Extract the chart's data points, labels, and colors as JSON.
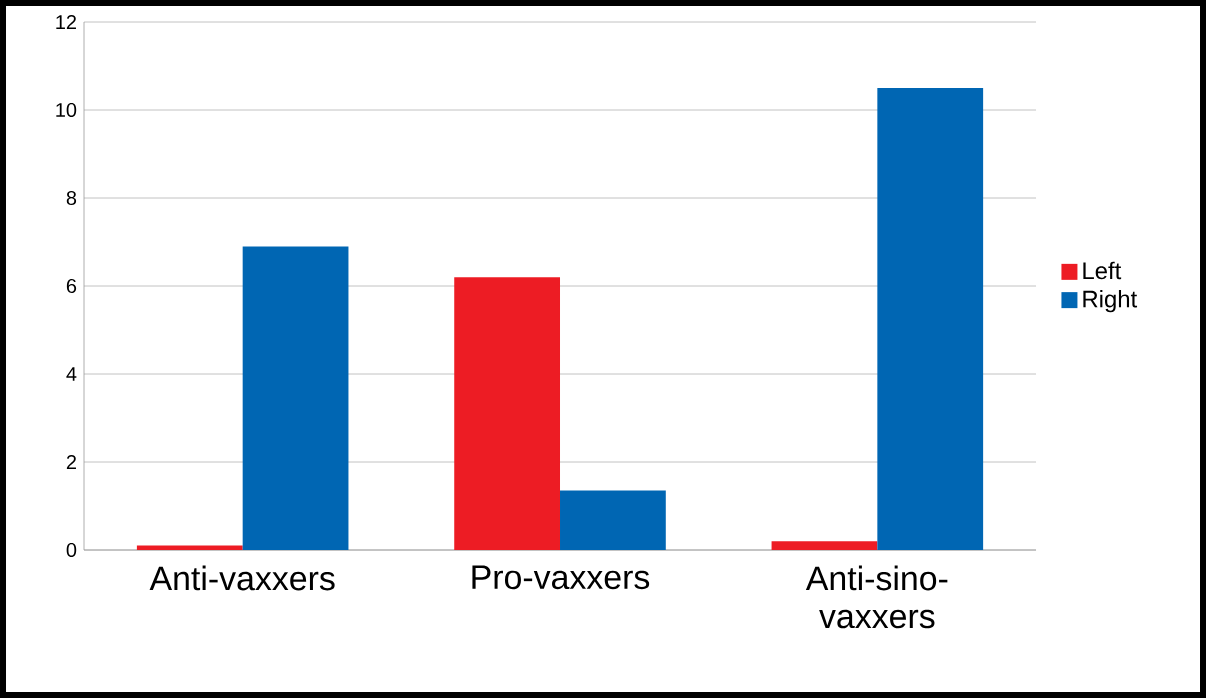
{
  "chart_data": {
    "type": "bar",
    "categories": [
      "Anti-vaxxers",
      "Pro-vaxxers",
      "Anti-sino-vaxxers"
    ],
    "series": [
      {
        "name": "Left",
        "color": "#ed1c24",
        "values": [
          0.1,
          6.2,
          0.2
        ]
      },
      {
        "name": "Right",
        "color": "#0066b3",
        "values": [
          6.9,
          1.35,
          10.5
        ]
      }
    ],
    "ylim": [
      0,
      12
    ],
    "yticks": [
      0,
      2,
      4,
      6,
      8,
      10,
      12
    ],
    "grid": "y",
    "legend": "right"
  }
}
